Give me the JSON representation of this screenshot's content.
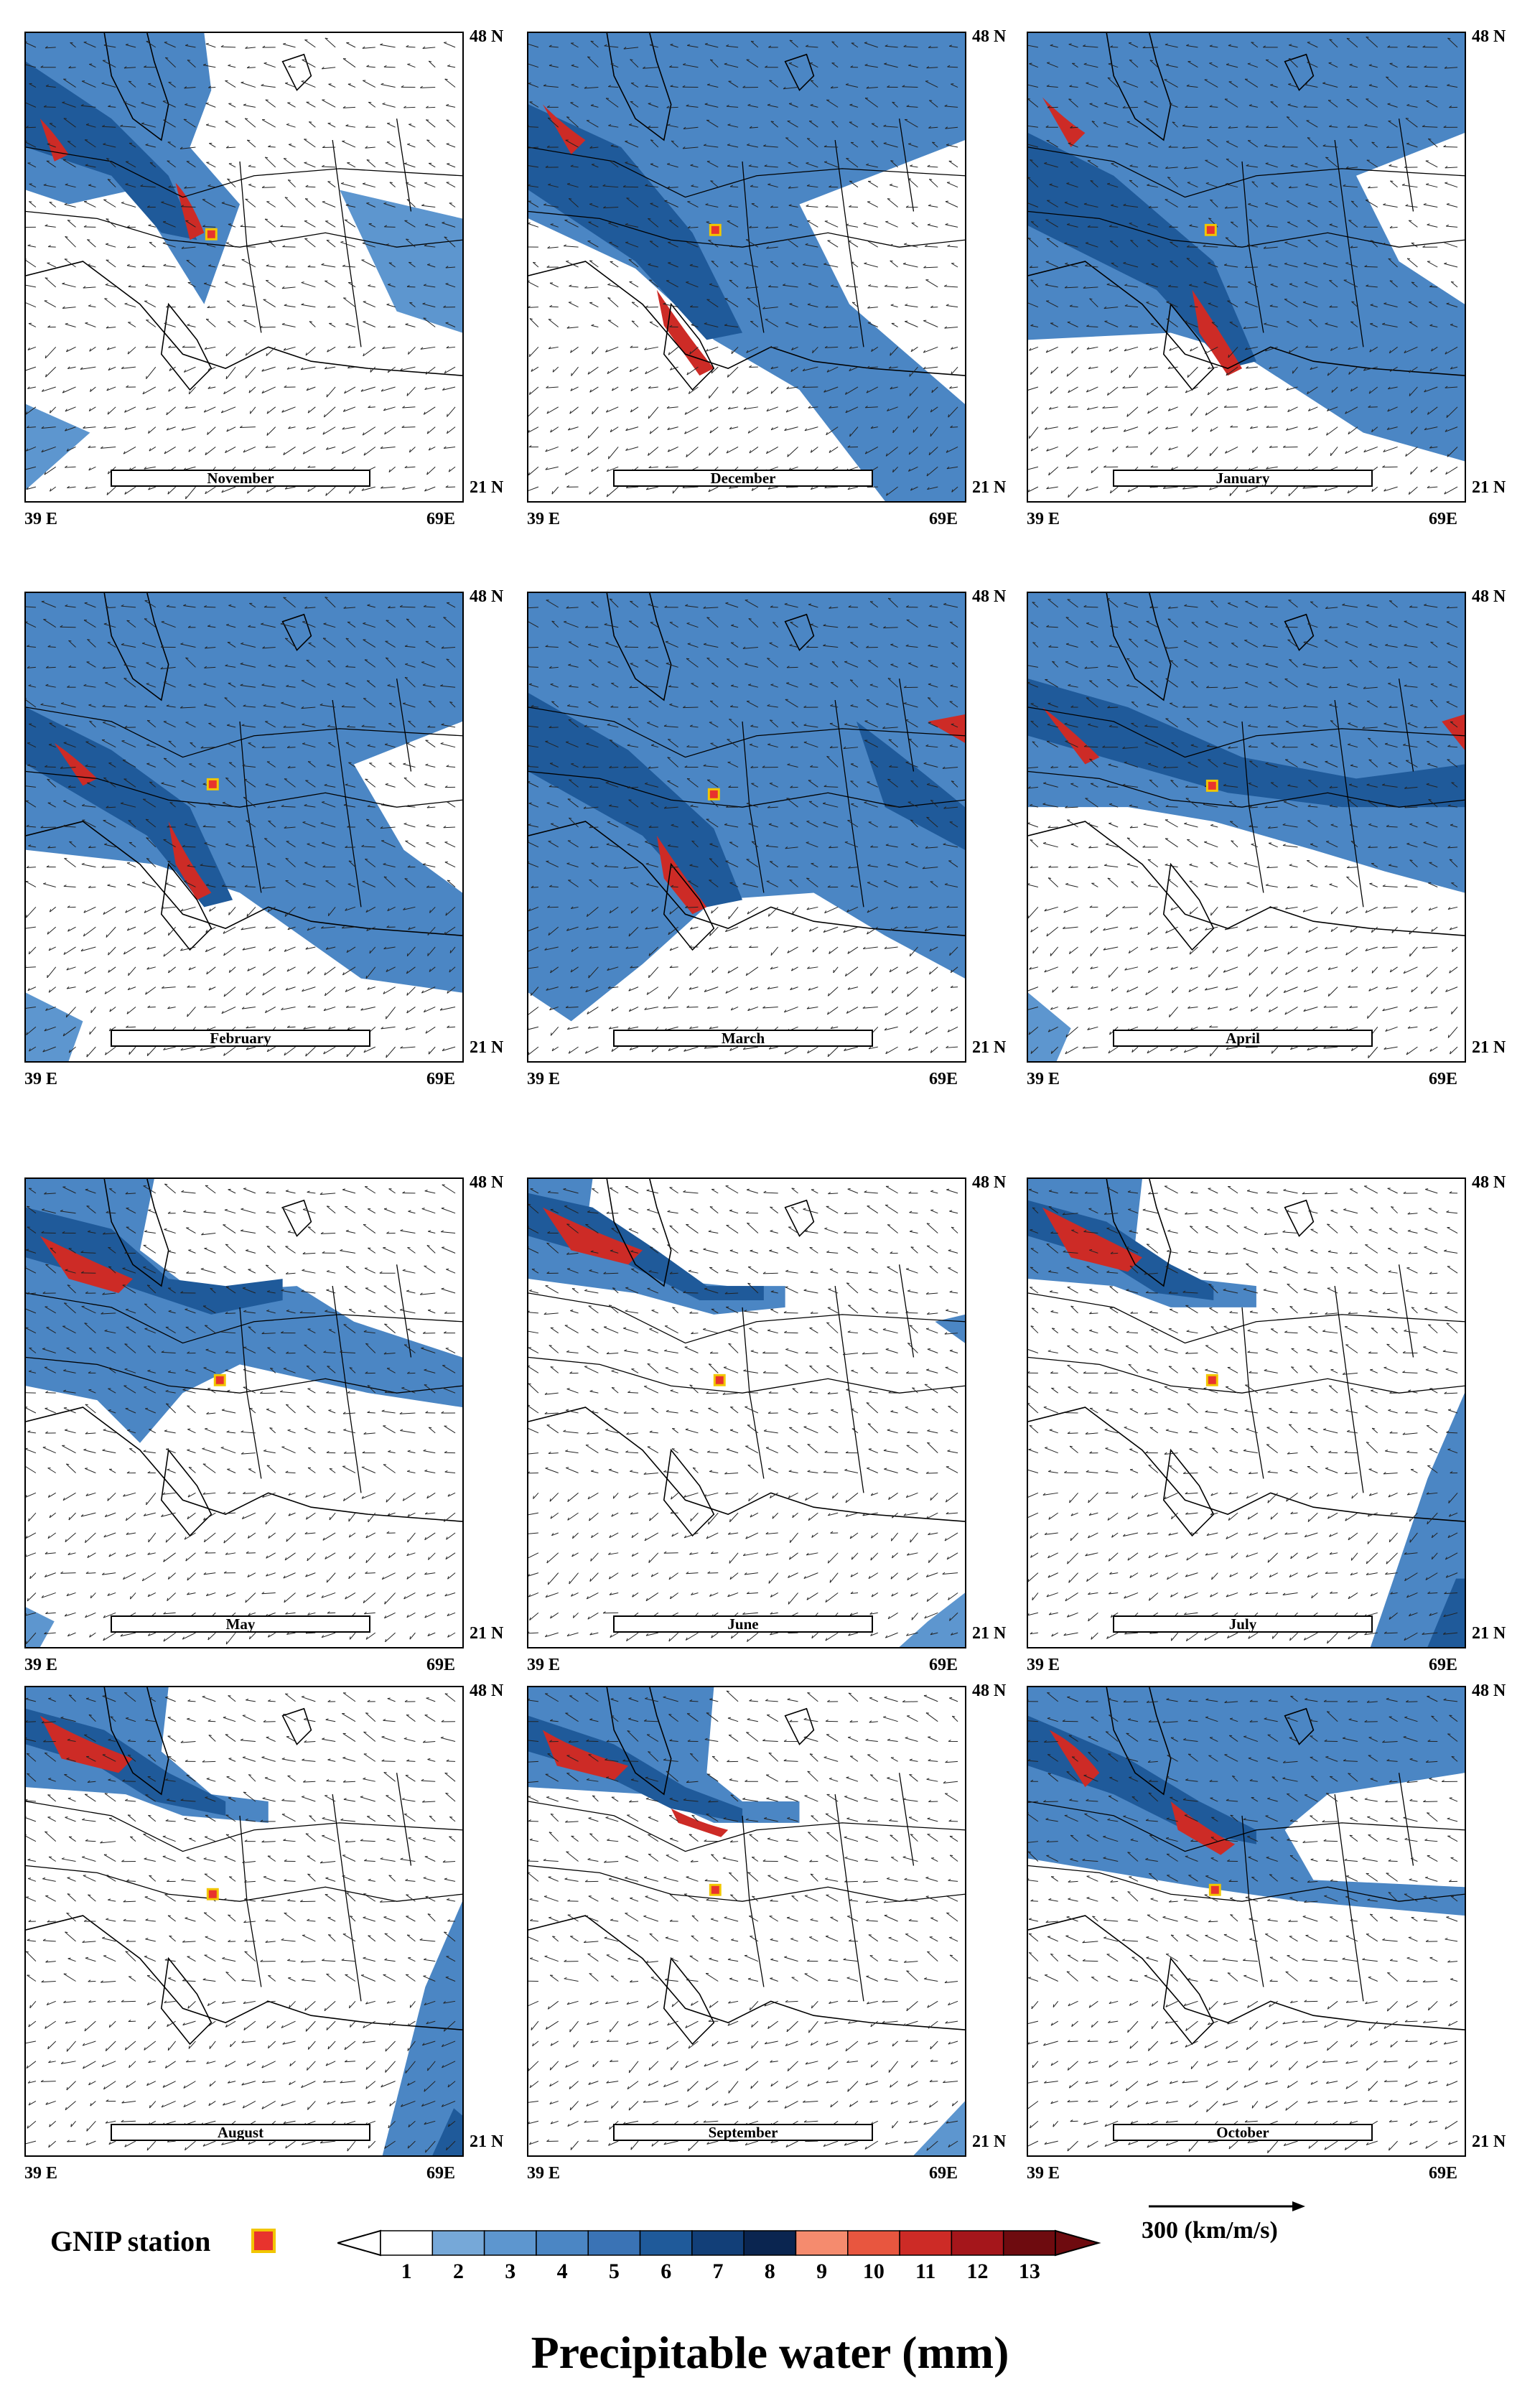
{
  "coordinates": {
    "lat_top": "48 N",
    "lat_bottom": "21 N",
    "lon_left": "39 E",
    "lon_right": "69E"
  },
  "panels": [
    {
      "month": "November"
    },
    {
      "month": "December"
    },
    {
      "month": "January"
    },
    {
      "month": "February"
    },
    {
      "month": "March"
    },
    {
      "month": "April"
    },
    {
      "month": "May"
    },
    {
      "month": "June"
    },
    {
      "month": "July"
    },
    {
      "month": "August"
    },
    {
      "month": "September"
    },
    {
      "month": "October"
    }
  ],
  "legend": {
    "station_label": "GNIP station",
    "vector_reference": "300 (km/m/s)",
    "title": "Precipitable water (mm)",
    "ticks": [
      "1",
      "2",
      "3",
      "4",
      "5",
      "6",
      "7",
      "8",
      "9",
      "10",
      "11",
      "12",
      "13"
    ],
    "colors": [
      "#ffffff",
      "#76a8d8",
      "#5d96cf",
      "#4b86c4",
      "#3a73b5",
      "#1f5a9a",
      "#123f78",
      "#0a2550",
      "#f58b6e",
      "#e8563f",
      "#cd2b26",
      "#a5161b",
      "#6e0b0f"
    ]
  },
  "colors": {
    "land_fill": "#ffffff",
    "station_fill": "#e8332d",
    "station_border": "#f2c600"
  }
}
